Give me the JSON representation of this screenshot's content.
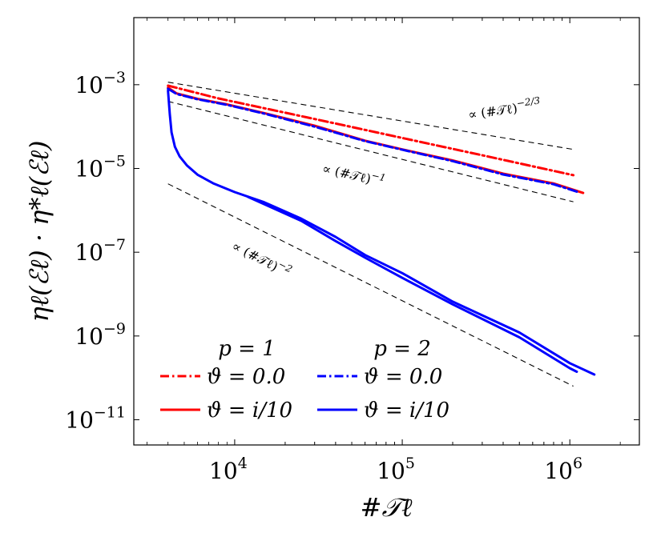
{
  "chart_data": {
    "type": "line",
    "xlabel": "#𝒯ℓ",
    "ylabel": "ηℓ(ℰℓ) · η*ℓ(ℰℓ)",
    "x_scale": "log",
    "y_scale": "log",
    "xlim": [
      2500,
      2600000
    ],
    "ylim": [
      2.5e-12,
      0.04
    ],
    "x_ticks": [
      {
        "value": 10000,
        "base": "10",
        "exp": "4"
      },
      {
        "value": 100000,
        "base": "10",
        "exp": "5"
      },
      {
        "value": 1000000,
        "base": "10",
        "exp": "6"
      }
    ],
    "y_ticks": [
      {
        "value": 0.001,
        "base": "10",
        "exp": "−3"
      },
      {
        "value": 1e-05,
        "base": "10",
        "exp": "−5"
      },
      {
        "value": 1e-07,
        "base": "10",
        "exp": "−7"
      },
      {
        "value": 1e-09,
        "base": "10",
        "exp": "−9"
      },
      {
        "value": 1e-11,
        "base": "10",
        "exp": "−11"
      }
    ],
    "grid": false,
    "series": [
      {
        "key": "p1_theta0",
        "color": "#ff0000",
        "dash": "dashdot",
        "x": [
          4000,
          8000,
          20000,
          50000,
          100000,
          300000,
          1050000
        ],
        "y": [
          0.00095,
          0.00047,
          0.000215,
          9.75e-05,
          5.35e-05,
          2.07e-05,
          6.9e-06
        ]
      },
      {
        "key": "p1_theta_i10",
        "color": "#ff0000",
        "dash": "solid",
        "x": [
          4000,
          4500,
          6000,
          9000,
          15000,
          30000,
          60000,
          100000,
          200000,
          400000,
          800000,
          1200000
        ],
        "y": [
          0.00085,
          0.00062,
          0.00046,
          0.00034,
          0.00021,
          0.000105,
          4.6e-05,
          2.85e-05,
          1.55e-05,
          7.5e-06,
          4.4e-06,
          2.6e-06
        ]
      },
      {
        "key": "p2_theta0",
        "color": "#0000ff",
        "dash": "dashdot",
        "x": [
          4000,
          4500,
          6000,
          9000,
          15000,
          30000,
          60000,
          100000,
          200000,
          400000,
          800000,
          1100000
        ],
        "y": [
          0.0008,
          0.0006,
          0.00045,
          0.00033,
          0.000205,
          0.0001,
          4.5e-05,
          2.8e-05,
          1.5e-05,
          7.2e-06,
          4.2e-06,
          2.8e-06
        ]
      },
      {
        "key": "p2_theta_i10",
        "color": "#0000ff",
        "dash": "solid",
        "x": [
          4000,
          4100,
          4200,
          4400,
          4700,
          5200,
          6000,
          7500,
          10000,
          15000,
          25000,
          40000,
          60000,
          100000,
          200000,
          500000,
          1000000,
          1400000
        ],
        "y": [
          0.00072,
          0.0002,
          7.26e-05,
          3.3e-05,
          1.93e-05,
          1.17e-05,
          7.1e-06,
          4.35e-06,
          2.73e-06,
          1.56e-06,
          6.3e-07,
          2.32e-07,
          8.56e-08,
          3.16e-08,
          6.6e-09,
          1.21e-09,
          2.24e-10,
          1.2e-10
        ]
      },
      {
        "key": "p2_theta_i10_b",
        "color": "#0000ff",
        "dash": "solid",
        "x": [
          12000,
          25000,
          40000,
          60000,
          100000,
          200000,
          500000,
          1000000,
          1100000
        ],
        "y": [
          2.1e-06,
          5.6e-07,
          1.85e-07,
          7.4e-08,
          2.44e-08,
          5.7e-09,
          9.3e-10,
          1.7e-10,
          1.4e-10
        ]
      }
    ],
    "references": [
      {
        "label": "∝ (#𝒯ℓ)",
        "exp": "−2/3",
        "x": [
          4000,
          1050000
        ],
        "y": [
          0.00115,
          2.85e-05
        ],
        "label_x": 250000,
        "label_y": 0.00015,
        "rotate": -8
      },
      {
        "label": "∝ (#𝒯ℓ)",
        "exp": "−1",
        "x": [
          4000,
          1050000
        ],
        "y": [
          0.0004,
          1.6e-06
        ],
        "label_x": 33000,
        "label_y": 8e-06,
        "rotate": 13
      },
      {
        "label": "∝ (#𝒯ℓ)",
        "exp": "−2",
        "x": [
          4000,
          1050000
        ],
        "y": [
          4.3e-06,
          6.33e-11
        ],
        "label_x": 9500,
        "label_y": 1.2e-07,
        "rotate": 27
      }
    ],
    "legend": {
      "placement": "bottom-left",
      "headers": [
        "p = 1",
        "p = 2"
      ],
      "entries": [
        {
          "series": "p1_theta0",
          "label": "ϑ = 0.0"
        },
        {
          "series": "p2_theta0",
          "label": "ϑ = 0.0"
        },
        {
          "series": "p1_theta_i10",
          "label": "ϑ = i/10"
        },
        {
          "series": "p2_theta_i10",
          "label": "ϑ = i/10"
        }
      ]
    }
  }
}
